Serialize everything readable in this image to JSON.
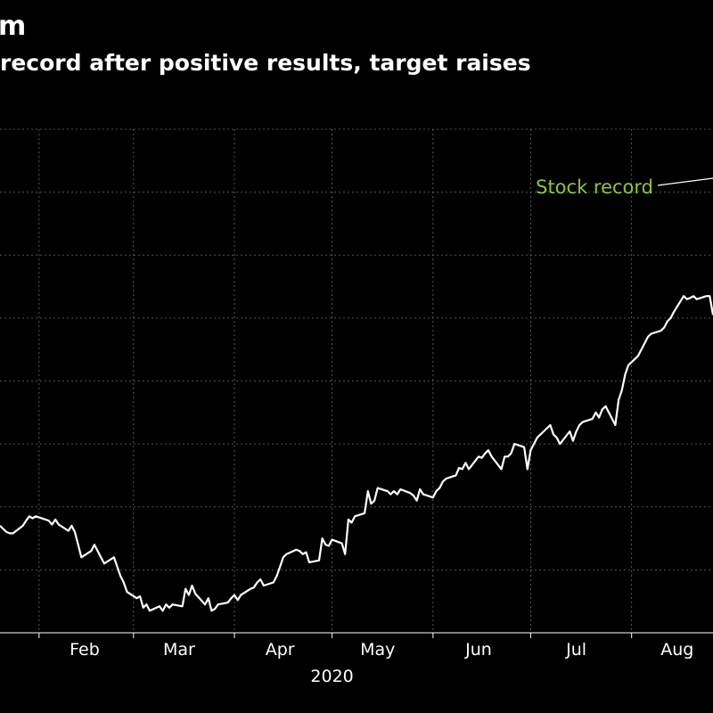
{
  "header": {
    "title": "m",
    "subtitle": "record after positive results, target raises"
  },
  "colors": {
    "background": "#000000",
    "line": "#ffffff",
    "grid": "#6b6b6b",
    "annotation": "#8dc63f"
  },
  "chart_data": {
    "type": "line",
    "title": "m",
    "subtitle": "record after positive results, target raises",
    "xlabel": "2020",
    "ylabel": "",
    "x_ticks": [
      "Feb",
      "Mar",
      "Apr",
      "May",
      "Jun",
      "Jul",
      "Aug"
    ],
    "x_year_label": "2020",
    "x_range": [
      "2020-01-20",
      "2020-09-05"
    ],
    "y_range": [
      0,
      8
    ],
    "y_ticks": [],
    "grid": true,
    "annotations": [
      {
        "text": "Stock record",
        "x": "2020-09-05",
        "y": 7.3
      }
    ],
    "series": [
      {
        "name": "",
        "x": [
          "2020-01-20",
          "2020-01-21",
          "2020-01-22",
          "2020-01-23",
          "2020-01-24",
          "2020-01-27",
          "2020-01-28",
          "2020-01-29",
          "2020-01-30",
          "2020-01-31",
          "2020-02-03",
          "2020-02-04",
          "2020-02-05",
          "2020-02-06",
          "2020-02-07",
          "2020-02-10",
          "2020-02-11",
          "2020-02-12",
          "2020-02-13",
          "2020-02-14",
          "2020-02-17",
          "2020-02-18",
          "2020-02-19",
          "2020-02-20",
          "2020-02-21",
          "2020-02-24",
          "2020-02-25",
          "2020-02-26",
          "2020-02-27",
          "2020-02-28",
          "2020-03-02",
          "2020-03-03",
          "2020-03-04",
          "2020-03-05",
          "2020-03-06",
          "2020-03-09",
          "2020-03-10",
          "2020-03-11",
          "2020-03-12",
          "2020-03-13",
          "2020-03-16",
          "2020-03-17",
          "2020-03-18",
          "2020-03-19",
          "2020-03-20",
          "2020-03-23",
          "2020-03-24",
          "2020-03-25",
          "2020-03-26",
          "2020-03-27",
          "2020-03-30",
          "2020-03-31",
          "2020-04-01",
          "2020-04-02",
          "2020-04-03",
          "2020-04-06",
          "2020-04-07",
          "2020-04-08",
          "2020-04-09",
          "2020-04-10",
          "2020-04-13",
          "2020-04-14",
          "2020-04-15",
          "2020-04-16",
          "2020-04-17",
          "2020-04-20",
          "2020-04-21",
          "2020-04-22",
          "2020-04-23",
          "2020-04-24",
          "2020-04-27",
          "2020-04-28",
          "2020-04-29",
          "2020-04-30",
          "2020-05-01",
          "2020-05-04",
          "2020-05-05",
          "2020-05-06",
          "2020-05-07",
          "2020-05-08",
          "2020-05-11",
          "2020-05-12",
          "2020-05-13",
          "2020-05-14",
          "2020-05-15",
          "2020-05-18",
          "2020-05-19",
          "2020-05-20",
          "2020-05-21",
          "2020-05-22",
          "2020-05-25",
          "2020-05-26",
          "2020-05-27",
          "2020-05-28",
          "2020-05-29",
          "2020-06-01",
          "2020-06-02",
          "2020-06-03",
          "2020-06-04",
          "2020-06-05",
          "2020-06-08",
          "2020-06-09",
          "2020-06-10",
          "2020-06-11",
          "2020-06-12",
          "2020-06-15",
          "2020-06-16",
          "2020-06-17",
          "2020-06-18",
          "2020-06-19",
          "2020-06-22",
          "2020-06-23",
          "2020-06-24",
          "2020-06-25",
          "2020-06-26",
          "2020-06-29",
          "2020-06-30",
          "2020-07-01",
          "2020-07-02",
          "2020-07-03",
          "2020-07-06",
          "2020-07-07",
          "2020-07-08",
          "2020-07-09",
          "2020-07-10",
          "2020-07-13",
          "2020-07-14",
          "2020-07-15",
          "2020-07-16",
          "2020-07-17",
          "2020-07-20",
          "2020-07-21",
          "2020-07-22",
          "2020-07-23",
          "2020-07-24",
          "2020-07-27",
          "2020-07-28",
          "2020-07-29",
          "2020-07-30",
          "2020-07-31",
          "2020-08-03",
          "2020-08-04",
          "2020-08-05",
          "2020-08-06",
          "2020-08-07",
          "2020-08-10",
          "2020-08-11",
          "2020-08-12",
          "2020-08-13",
          "2020-08-14",
          "2020-08-17",
          "2020-08-18",
          "2020-08-19",
          "2020-08-20",
          "2020-08-21",
          "2020-08-24",
          "2020-08-25",
          "2020-08-26"
        ],
        "values": [
          1.7,
          1.65,
          1.6,
          1.58,
          1.58,
          1.7,
          1.78,
          1.85,
          1.82,
          1.85,
          1.8,
          1.78,
          1.72,
          1.8,
          1.72,
          1.62,
          1.7,
          1.6,
          1.4,
          1.2,
          1.3,
          1.4,
          1.3,
          1.2,
          1.1,
          1.2,
          1.05,
          0.9,
          0.8,
          0.65,
          0.55,
          0.58,
          0.4,
          0.45,
          0.35,
          0.42,
          0.35,
          0.45,
          0.4,
          0.45,
          0.42,
          0.7,
          0.6,
          0.75,
          0.62,
          0.45,
          0.55,
          0.35,
          0.38,
          0.45,
          0.48,
          0.55,
          0.6,
          0.52,
          0.6,
          0.7,
          0.72,
          0.8,
          0.85,
          0.75,
          0.8,
          0.9,
          1.05,
          1.2,
          1.25,
          1.32,
          1.3,
          1.25,
          1.28,
          1.12,
          1.15,
          1.5,
          1.4,
          1.38,
          1.48,
          1.42,
          1.25,
          1.8,
          1.75,
          1.85,
          1.9,
          2.25,
          2.05,
          2.1,
          2.3,
          2.25,
          2.2,
          2.25,
          2.2,
          2.28,
          2.22,
          2.18,
          2.1,
          2.28,
          2.2,
          2.15,
          2.25,
          2.3,
          2.4,
          2.45,
          2.5,
          2.62,
          2.6,
          2.7,
          2.6,
          2.8,
          2.78,
          2.85,
          2.9,
          2.8,
          2.6,
          2.8,
          2.8,
          2.85,
          3.0,
          2.95,
          2.6,
          2.9,
          3.0,
          3.1,
          3.25,
          3.3,
          3.15,
          3.1,
          3.0,
          3.2,
          3.05,
          3.2,
          3.3,
          3.35,
          3.4,
          3.5,
          3.42,
          3.55,
          3.6,
          3.3,
          3.7,
          3.85,
          4.1,
          4.25,
          4.4,
          4.5,
          4.6,
          4.7,
          4.75,
          4.8,
          4.85,
          4.95,
          5.0,
          5.1,
          5.35,
          5.3,
          5.32,
          5.35,
          5.3,
          5.35,
          5.35,
          5.05
        ]
      }
    ]
  }
}
